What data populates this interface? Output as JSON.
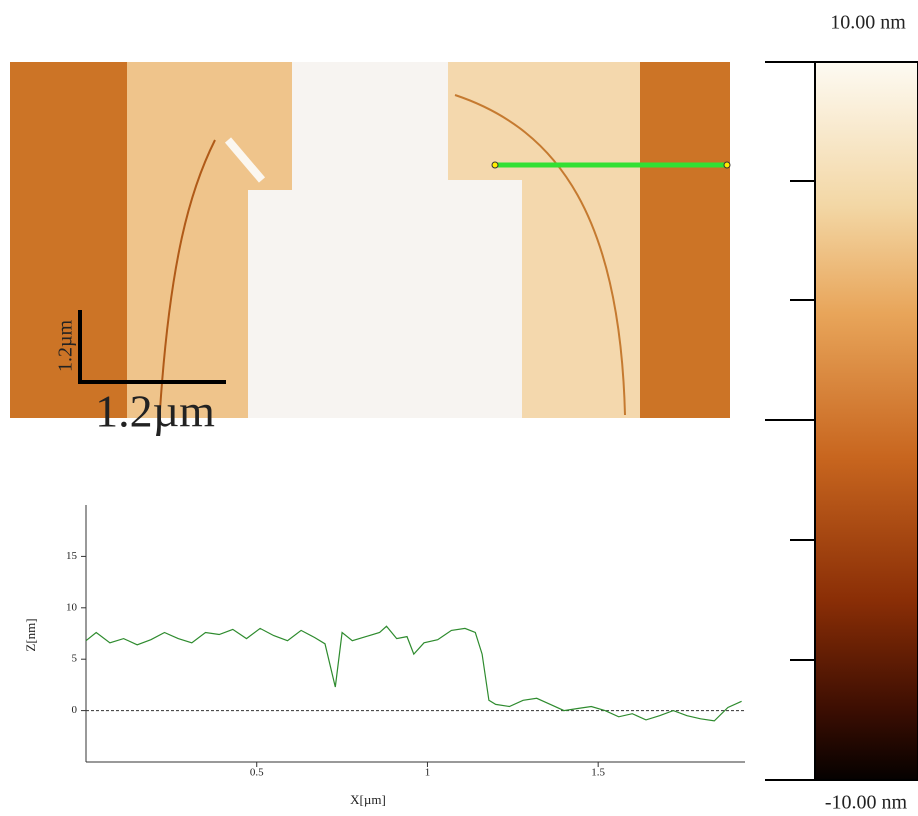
{
  "chart_data": {
    "type": "line",
    "xlabel": "X[µm]",
    "ylabel": "Z[nm]",
    "color": "#2e8b2e",
    "x": [
      0.0,
      0.03,
      0.07,
      0.11,
      0.15,
      0.19,
      0.23,
      0.27,
      0.31,
      0.35,
      0.39,
      0.43,
      0.47,
      0.51,
      0.55,
      0.59,
      0.63,
      0.67,
      0.7,
      0.73,
      0.75,
      0.78,
      0.82,
      0.86,
      0.88,
      0.91,
      0.94,
      0.96,
      0.99,
      1.03,
      1.07,
      1.11,
      1.14,
      1.16,
      1.18,
      1.2,
      1.24,
      1.28,
      1.32,
      1.36,
      1.4,
      1.44,
      1.48,
      1.52,
      1.56,
      1.6,
      1.64,
      1.68,
      1.72,
      1.76,
      1.8,
      1.84,
      1.88,
      1.92
    ],
    "values": [
      6.8,
      7.6,
      6.6,
      7.0,
      6.4,
      6.9,
      7.6,
      7.0,
      6.6,
      7.6,
      7.4,
      7.9,
      7.0,
      8.0,
      7.3,
      6.8,
      7.8,
      7.1,
      6.5,
      2.3,
      7.6,
      6.8,
      7.2,
      7.6,
      8.2,
      7.0,
      7.2,
      5.5,
      6.6,
      6.9,
      7.8,
      8.0,
      7.6,
      5.5,
      1.0,
      0.6,
      0.4,
      1.0,
      1.2,
      0.6,
      0.0,
      0.2,
      0.4,
      0.0,
      -0.6,
      -0.3,
      -0.9,
      -0.5,
      0.0,
      -0.5,
      -0.8,
      -1.0,
      0.3,
      0.9
    ],
    "xlim": [
      0,
      1.93
    ],
    "ylim": [
      -5,
      20
    ],
    "xticks": [
      0.5,
      1,
      1.5
    ],
    "yticks": [
      0,
      5,
      10,
      15
    ]
  },
  "colorbar": {
    "max_label": "10.00 nm",
    "min_label": "-10.00 nm"
  },
  "scale_bar": {
    "horizontal_label": "1.2µm",
    "vertical_label": "1.2µm"
  }
}
